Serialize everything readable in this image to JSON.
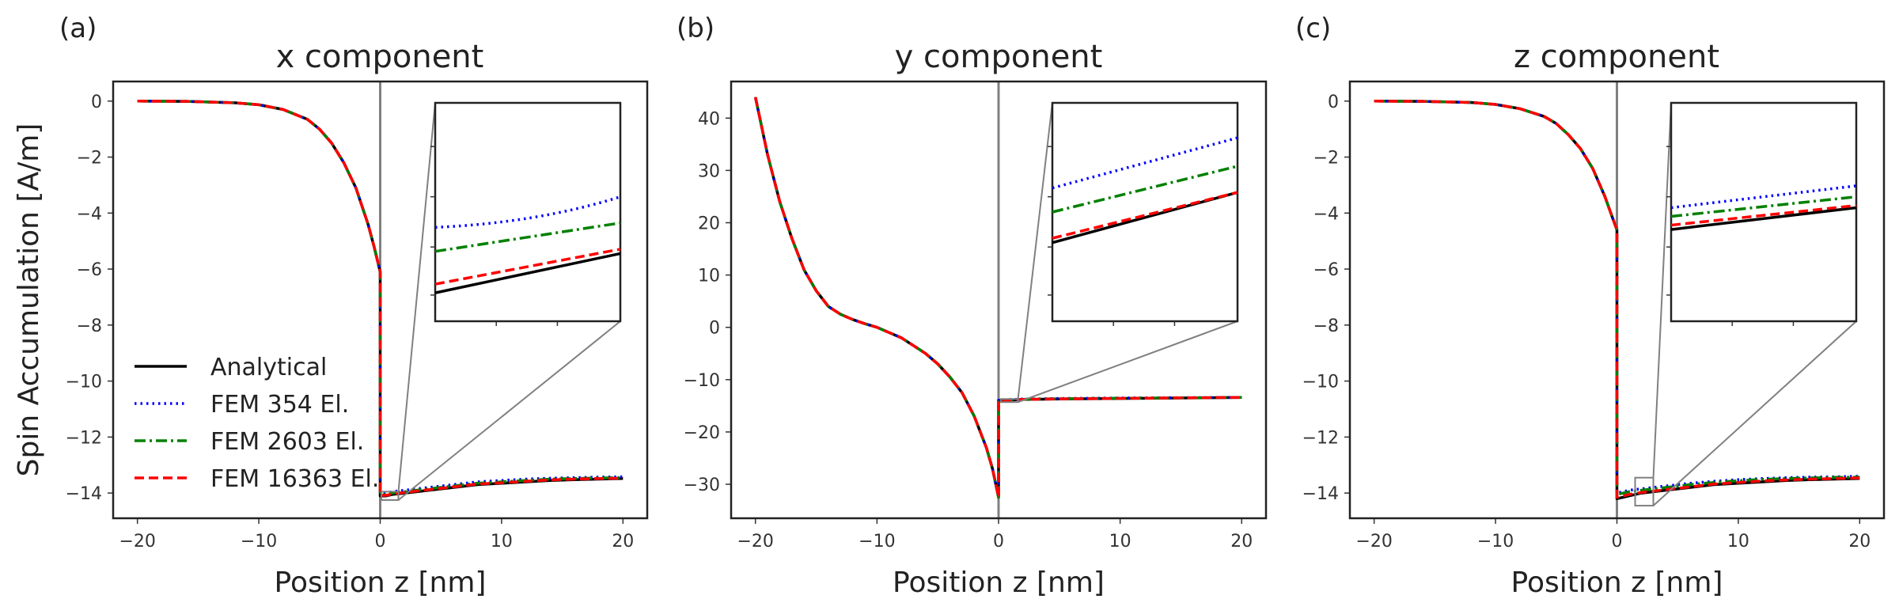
{
  "chart_data": [
    {
      "panel_label": "(a)",
      "type": "line",
      "title": "x component",
      "xlabel": "Position z [nm]",
      "ylabel": "Spin Accumulation [A/m]",
      "xlim": [
        -22,
        22
      ],
      "ylim": [
        -14.9,
        0.7
      ],
      "xticks": [
        -20,
        -10,
        0,
        10,
        20
      ],
      "xtick_labels": [
        "−20",
        "−10",
        "0",
        "10",
        "20"
      ],
      "yticks": [
        0,
        -2,
        -4,
        -6,
        -8,
        -10,
        -12,
        -14
      ],
      "ytick_labels": [
        "0",
        "−2",
        "−4",
        "−6",
        "−8",
        "−10",
        "−12",
        "−14"
      ],
      "interface_line_x": 0,
      "series": [
        {
          "name": "Analytical",
          "color": "#000000",
          "style": "solid",
          "x": [
            -20,
            -16,
            -12,
            -10,
            -8,
            -6,
            -5,
            -4,
            -3,
            -2,
            -1,
            -0.5,
            0,
            0,
            0.5,
            1,
            2,
            4,
            6,
            8,
            10,
            12,
            14,
            16,
            18,
            20
          ],
          "y": [
            0,
            -0.01,
            -0.06,
            -0.13,
            -0.3,
            -0.65,
            -1.0,
            -1.5,
            -2.2,
            -3.1,
            -4.4,
            -5.2,
            -6.1,
            -14.1,
            -14.1,
            -14.05,
            -14.0,
            -13.9,
            -13.8,
            -13.7,
            -13.65,
            -13.6,
            -13.55,
            -13.52,
            -13.5,
            -13.48
          ]
        },
        {
          "name": "FEM 354 El.",
          "color": "#0000ff",
          "style": "dotted",
          "x": [
            -20,
            -16,
            -12,
            -10,
            -8,
            -6,
            -5,
            -4,
            -3,
            -2,
            -1,
            -0.5,
            0,
            0,
            0.5,
            1,
            2,
            4,
            6,
            8,
            10,
            12,
            14,
            16,
            18,
            20
          ],
          "y": [
            0,
            -0.01,
            -0.06,
            -0.13,
            -0.3,
            -0.65,
            -1.0,
            -1.5,
            -2.2,
            -3.1,
            -4.4,
            -5.2,
            -6.1,
            -14.0,
            -14.0,
            -13.95,
            -13.9,
            -13.8,
            -13.7,
            -13.6,
            -13.55,
            -13.5,
            -13.47,
            -13.45,
            -13.43,
            -13.42
          ]
        },
        {
          "name": "FEM 2603 El.",
          "color": "#008000",
          "style": "dashdot",
          "x": [
            -20,
            -16,
            -12,
            -10,
            -8,
            -6,
            -5,
            -4,
            -3,
            -2,
            -1,
            -0.5,
            0,
            0,
            0.5,
            1,
            2,
            4,
            6,
            8,
            10,
            12,
            14,
            16,
            18,
            20
          ],
          "y": [
            0,
            -0.01,
            -0.06,
            -0.13,
            -0.3,
            -0.65,
            -1.0,
            -1.5,
            -2.2,
            -3.1,
            -4.4,
            -5.2,
            -6.1,
            -14.05,
            -14.05,
            -14.0,
            -13.95,
            -13.85,
            -13.75,
            -13.65,
            -13.6,
            -13.55,
            -13.5,
            -13.48,
            -13.46,
            -13.45
          ]
        },
        {
          "name": "FEM 16363 El.",
          "color": "#ff0000",
          "style": "dashed",
          "x": [
            -20,
            -16,
            -12,
            -10,
            -8,
            -6,
            -5,
            -4,
            -3,
            -2,
            -1,
            -0.5,
            0,
            0,
            0.5,
            1,
            2,
            4,
            6,
            8,
            10,
            12,
            14,
            16,
            18,
            20
          ],
          "y": [
            0,
            -0.01,
            -0.06,
            -0.13,
            -0.3,
            -0.65,
            -1.0,
            -1.5,
            -2.2,
            -3.1,
            -4.4,
            -5.2,
            -6.1,
            -14.08,
            -14.08,
            -14.03,
            -13.98,
            -13.88,
            -13.78,
            -13.68,
            -13.63,
            -13.58,
            -13.53,
            -13.5,
            -13.48,
            -13.47
          ]
        }
      ],
      "inset": {
        "zoom_box_x": [
          0.1,
          1.5
        ],
        "zoom_box_y": [
          -14.25,
          -13.95
        ],
        "lines": [
          {
            "series": "Analytical",
            "y0": 0.13,
            "y1": 0.31
          },
          {
            "series": "FEM 354 El.",
            "y0": 0.43,
            "y1": 0.57,
            "curve": true
          },
          {
            "series": "FEM 2603 El.",
            "y0": 0.32,
            "y1": 0.45
          },
          {
            "series": "FEM 16363 El.",
            "y0": 0.17,
            "y1": 0.33
          }
        ]
      },
      "legend": {
        "location": "lower-left",
        "entries": [
          "Analytical",
          "FEM 354 El.",
          "FEM 2603 El.",
          "FEM 16363 El."
        ]
      }
    },
    {
      "panel_label": "(b)",
      "type": "line",
      "title": "y component",
      "xlabel": "Position z [nm]",
      "ylabel": "",
      "xlim": [
        -22,
        22
      ],
      "ylim": [
        -36.5,
        47
      ],
      "xticks": [
        -20,
        -10,
        0,
        10,
        20
      ],
      "xtick_labels": [
        "−20",
        "−10",
        "0",
        "10",
        "20"
      ],
      "yticks": [
        40,
        30,
        20,
        10,
        0,
        -10,
        -20,
        -30
      ],
      "ytick_labels": [
        "40",
        "30",
        "20",
        "10",
        "0",
        "−10",
        "−20",
        "−30"
      ],
      "interface_line_x": 0,
      "series": [
        {
          "name": "Analytical",
          "color": "#000000",
          "style": "solid",
          "x": [
            -20,
            -19,
            -18,
            -17,
            -16,
            -15,
            -14,
            -13,
            -12,
            -11,
            -10,
            -9,
            -8,
            -7,
            -6,
            -5,
            -4,
            -3,
            -2,
            -1,
            -0.5,
            0,
            0,
            1,
            2,
            5,
            10,
            15,
            20
          ],
          "y": [
            44,
            33,
            24,
            17,
            11,
            7,
            4,
            2.5,
            1.5,
            0.7,
            0,
            -1,
            -2,
            -3.5,
            -5,
            -7,
            -9.5,
            -12.5,
            -17,
            -23,
            -27,
            -32.5,
            -14,
            -13.9,
            -13.8,
            -13.7,
            -13.6,
            -13.5,
            -13.4
          ]
        },
        {
          "name": "FEM 354 El.",
          "color": "#0000ff",
          "style": "dotted",
          "x": [
            -20,
            -19,
            -18,
            -17,
            -16,
            -15,
            -14,
            -13,
            -12,
            -11,
            -10,
            -9,
            -8,
            -7,
            -6,
            -5,
            -4,
            -3,
            -2,
            -1,
            -0.5,
            0,
            0,
            1,
            2,
            5,
            10,
            15,
            20
          ],
          "y": [
            44,
            33,
            24,
            17,
            11,
            7,
            4,
            2.5,
            1.5,
            0.7,
            0,
            -1,
            -2,
            -3.5,
            -5,
            -7,
            -9.5,
            -12.5,
            -17,
            -23,
            -27,
            -32.5,
            -13.9,
            -13.8,
            -13.7,
            -13.6,
            -13.5,
            -13.45,
            -13.4
          ]
        },
        {
          "name": "FEM 2603 El.",
          "color": "#008000",
          "style": "dashdot",
          "x": [
            -20,
            -19,
            -18,
            -17,
            -16,
            -15,
            -14,
            -13,
            -12,
            -11,
            -10,
            -9,
            -8,
            -7,
            -6,
            -5,
            -4,
            -3,
            -2,
            -1,
            -0.5,
            0,
            0,
            1,
            2,
            5,
            10,
            15,
            20
          ],
          "y": [
            44,
            33,
            24,
            17,
            11,
            7,
            4,
            2.5,
            1.5,
            0.7,
            0,
            -1,
            -2,
            -3.5,
            -5,
            -7,
            -9.5,
            -12.5,
            -17,
            -23,
            -27,
            -32.5,
            -13.95,
            -13.85,
            -13.75,
            -13.65,
            -13.55,
            -13.47,
            -13.4
          ]
        },
        {
          "name": "FEM 16363 El.",
          "color": "#ff0000",
          "style": "dashed",
          "x": [
            -20,
            -19,
            -18,
            -17,
            -16,
            -15,
            -14,
            -13,
            -12,
            -11,
            -10,
            -9,
            -8,
            -7,
            -6,
            -5,
            -4,
            -3,
            -2,
            -1,
            -0.5,
            0,
            0,
            1,
            2,
            5,
            10,
            15,
            20
          ],
          "y": [
            44,
            33,
            24,
            17,
            11,
            7,
            4,
            2.5,
            1.5,
            0.7,
            0,
            -1,
            -2,
            -3.5,
            -5,
            -7,
            -9.5,
            -12.5,
            -17,
            -23,
            -27,
            -32.5,
            -13.98,
            -13.88,
            -13.78,
            -13.68,
            -13.58,
            -13.48,
            -13.4
          ]
        }
      ],
      "inset": {
        "zoom_box_x": [
          0.2,
          1.6
        ],
        "zoom_box_y": [
          -14.3,
          -13.7
        ],
        "lines": [
          {
            "series": "Analytical",
            "y0": 0.36,
            "y1": 0.59
          },
          {
            "series": "FEM 354 El.",
            "y0": 0.61,
            "y1": 0.84
          },
          {
            "series": "FEM 2603 El.",
            "y0": 0.5,
            "y1": 0.71
          },
          {
            "series": "FEM 16363 El.",
            "y0": 0.38,
            "y1": 0.59
          }
        ]
      },
      "legend": null
    },
    {
      "panel_label": "(c)",
      "type": "line",
      "title": "z component",
      "xlabel": "Position z [nm]",
      "ylabel": "",
      "xlim": [
        -22,
        22
      ],
      "ylim": [
        -14.9,
        0.7
      ],
      "xticks": [
        -20,
        -10,
        0,
        10,
        20
      ],
      "xtick_labels": [
        "−20",
        "−10",
        "0",
        "10",
        "20"
      ],
      "yticks": [
        0,
        -2,
        -4,
        -6,
        -8,
        -10,
        -12,
        -14
      ],
      "ytick_labels": [
        "0",
        "−2",
        "−4",
        "−6",
        "−8",
        "−10",
        "−12",
        "−14"
      ],
      "interface_line_x": 0,
      "series": [
        {
          "name": "Analytical",
          "color": "#000000",
          "style": "solid",
          "x": [
            -20,
            -16,
            -12,
            -10,
            -8,
            -6,
            -5,
            -4,
            -3,
            -2,
            -1,
            -0.5,
            0,
            0,
            0.5,
            1,
            2,
            4,
            6,
            8,
            10,
            12,
            14,
            16,
            18,
            20
          ],
          "y": [
            0,
            -0.01,
            -0.05,
            -0.12,
            -0.27,
            -0.55,
            -0.8,
            -1.2,
            -1.7,
            -2.4,
            -3.4,
            -4.0,
            -4.6,
            -14.2,
            -14.15,
            -14.1,
            -14.0,
            -13.9,
            -13.8,
            -13.7,
            -13.65,
            -13.6,
            -13.55,
            -13.52,
            -13.5,
            -13.48
          ]
        },
        {
          "name": "FEM 354 El.",
          "color": "#0000ff",
          "style": "dotted",
          "x": [
            -20,
            -16,
            -12,
            -10,
            -8,
            -6,
            -5,
            -4,
            -3,
            -2,
            -1,
            -0.5,
            0,
            0,
            0.5,
            1,
            2,
            4,
            6,
            8,
            10,
            12,
            14,
            16,
            18,
            20
          ],
          "y": [
            0,
            -0.01,
            -0.05,
            -0.12,
            -0.27,
            -0.55,
            -0.8,
            -1.2,
            -1.7,
            -2.4,
            -3.4,
            -4.0,
            -4.6,
            -14.0,
            -13.95,
            -13.9,
            -13.85,
            -13.75,
            -13.65,
            -13.58,
            -13.52,
            -13.48,
            -13.45,
            -13.43,
            -13.42,
            -13.4
          ]
        },
        {
          "name": "FEM 2603 El.",
          "color": "#008000",
          "style": "dashdot",
          "x": [
            -20,
            -16,
            -12,
            -10,
            -8,
            -6,
            -5,
            -4,
            -3,
            -2,
            -1,
            -0.5,
            0,
            0,
            0.5,
            1,
            2,
            4,
            6,
            8,
            10,
            12,
            14,
            16,
            18,
            20
          ],
          "y": [
            0,
            -0.01,
            -0.05,
            -0.12,
            -0.27,
            -0.55,
            -0.8,
            -1.2,
            -1.7,
            -2.4,
            -3.4,
            -4.0,
            -4.6,
            -14.05,
            -14.0,
            -13.95,
            -13.9,
            -13.8,
            -13.7,
            -13.62,
            -13.56,
            -13.51,
            -13.48,
            -13.46,
            -13.44,
            -13.43
          ]
        },
        {
          "name": "FEM 16363 El.",
          "color": "#ff0000",
          "style": "dashed",
          "x": [
            -20,
            -16,
            -12,
            -10,
            -8,
            -6,
            -5,
            -4,
            -3,
            -2,
            -1,
            -0.5,
            0,
            0,
            0.5,
            1,
            2,
            4,
            6,
            8,
            10,
            12,
            14,
            16,
            18,
            20
          ],
          "y": [
            0,
            -0.01,
            -0.05,
            -0.12,
            -0.27,
            -0.55,
            -0.8,
            -1.2,
            -1.7,
            -2.4,
            -3.4,
            -4.0,
            -4.6,
            -14.15,
            -14.1,
            -14.05,
            -13.98,
            -13.88,
            -13.78,
            -13.68,
            -13.62,
            -13.57,
            -13.53,
            -13.5,
            -13.48,
            -13.46
          ]
        }
      ],
      "inset": {
        "zoom_box_x": [
          1.5,
          3.0
        ],
        "zoom_box_y": [
          -14.45,
          -13.45
        ],
        "lines": [
          {
            "series": "Analytical",
            "y0": 0.42,
            "y1": 0.52
          },
          {
            "series": "FEM 354 El.",
            "y0": 0.52,
            "y1": 0.62
          },
          {
            "series": "FEM 2603 El.",
            "y0": 0.48,
            "y1": 0.57
          },
          {
            "series": "FEM 16363 El.",
            "y0": 0.44,
            "y1": 0.53
          }
        ]
      },
      "legend": null
    }
  ]
}
